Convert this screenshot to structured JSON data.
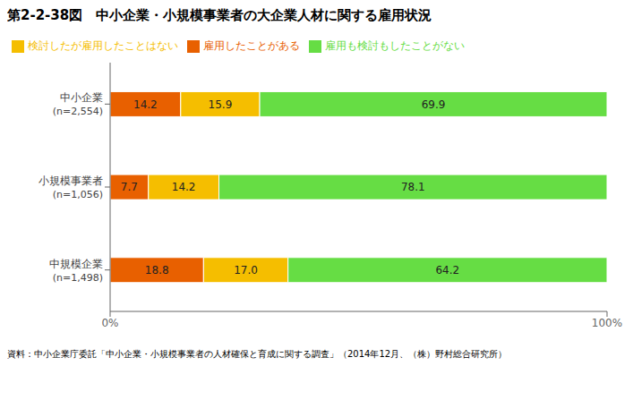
{
  "chart_data": {
    "type": "bar",
    "title": "第2-2-38図　中小企業・小規模事業者の大企業人材に関する雇用状況",
    "annotations": [
      "資料：中小企業庁委託「中小企業・小規模事業者の人材確保と育成に関する調査」（2014年12月、（株）野村総合研究所）"
    ],
    "orientation": "horizontal",
    "stacked": true,
    "data_labels": true,
    "grid": false,
    "legend": "upper left",
    "categories": [
      "中小企業\n(n=2,554)",
      "小規模事業者\n(n=1,056)",
      "中規模企業\n(n=1,498)"
    ],
    "series": [
      {
        "name": "雇用したことがある",
        "color": "#E86000",
        "values": [
          14.2,
          7.7,
          18.8
        ]
      },
      {
        "name": "検討したが雇用したことはない",
        "color": "#F5BE00",
        "values": [
          15.9,
          14.2,
          17.0
        ],
        "value_labels": [
          "15.9",
          "14.2",
          "17.0"
        ]
      },
      {
        "name": "雇用も検討もしたことがない",
        "color": "#66DD44",
        "values": [
          69.9,
          78.1,
          64.2
        ]
      }
    ],
    "xlim": [
      0,
      100
    ],
    "xticks": [
      {
        "value": 0,
        "label": "0%"
      },
      {
        "value": 100,
        "label": "100%"
      }
    ]
  }
}
